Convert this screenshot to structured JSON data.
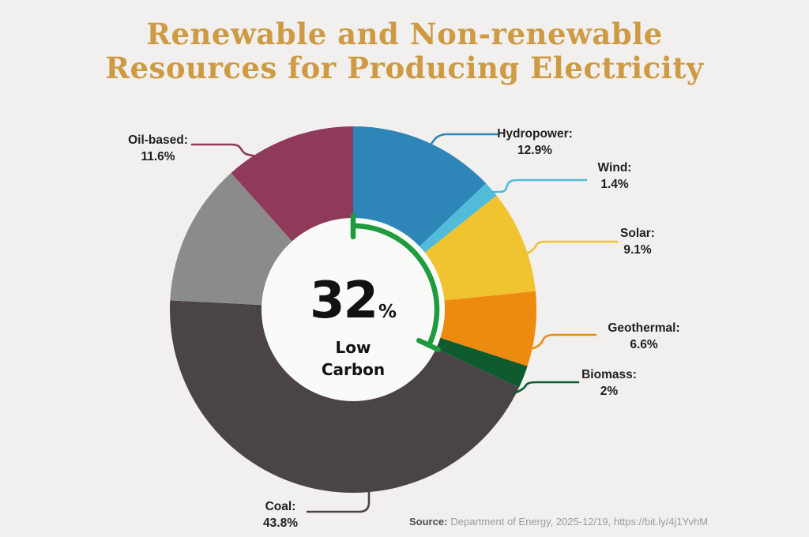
{
  "title": {
    "line1": "Renewable and Non-renewable",
    "line2": "Resources for Producing Electricity"
  },
  "chart_data": {
    "type": "pie",
    "subtype": "donut",
    "title": "Renewable and Non-renewable Resources for Producing Electricity",
    "start_angle": "top",
    "direction": "clockwise",
    "segments": [
      {
        "label": "Hydropower",
        "value": 12.9,
        "color": "#2E86B8"
      },
      {
        "label": "Wind",
        "value": 1.4,
        "color": "#52BBD9"
      },
      {
        "label": "Solar",
        "value": 9.1,
        "color": "#F0C330"
      },
      {
        "label": "Geothermal",
        "value": 6.6,
        "color": "#ED8B10"
      },
      {
        "label": "Biomass",
        "value": 2,
        "color": "#0F5B2E"
      },
      {
        "label": "Coal",
        "value": 43.8,
        "color": "#4A4448"
      },
      {
        "label": "",
        "value": 12.6,
        "color": "#8B8B8B"
      },
      {
        "label": "Oil-based",
        "value": 11.6,
        "color": "#8F395B"
      }
    ],
    "center_label": {
      "value": "32",
      "unit": "%",
      "line1": "Low",
      "line2": "Carbon"
    },
    "low_carbon_bracket": {
      "percent": 32,
      "color": "#1E9B3C"
    }
  },
  "callouts": {
    "hydropower": {
      "label": "Hydropower:",
      "value": "12.9%"
    },
    "wind": {
      "label": "Wind:",
      "value": "1.4%"
    },
    "solar": {
      "label": "Solar:",
      "value": "9.1%"
    },
    "geothermal": {
      "label": "Geothermal:",
      "value": "6.6%"
    },
    "biomass": {
      "label": "Biomass:",
      "value": "2%"
    },
    "coal": {
      "label": "Coal:",
      "value": "43.8%"
    },
    "oil": {
      "label": "Oil-based:",
      "value": "11.6%"
    }
  },
  "source": {
    "label": "Source:",
    "text": "Department of Energy, 2025-12/19, https://bit.ly/4j1YvhM"
  },
  "colors": {
    "background": "#F1F0EE",
    "title": "#CE9A43",
    "hole": "#FAFAF8",
    "label_text": "#1F1F1F",
    "source_label": "#4E4E4E",
    "source_text": "#9B9B9B"
  }
}
